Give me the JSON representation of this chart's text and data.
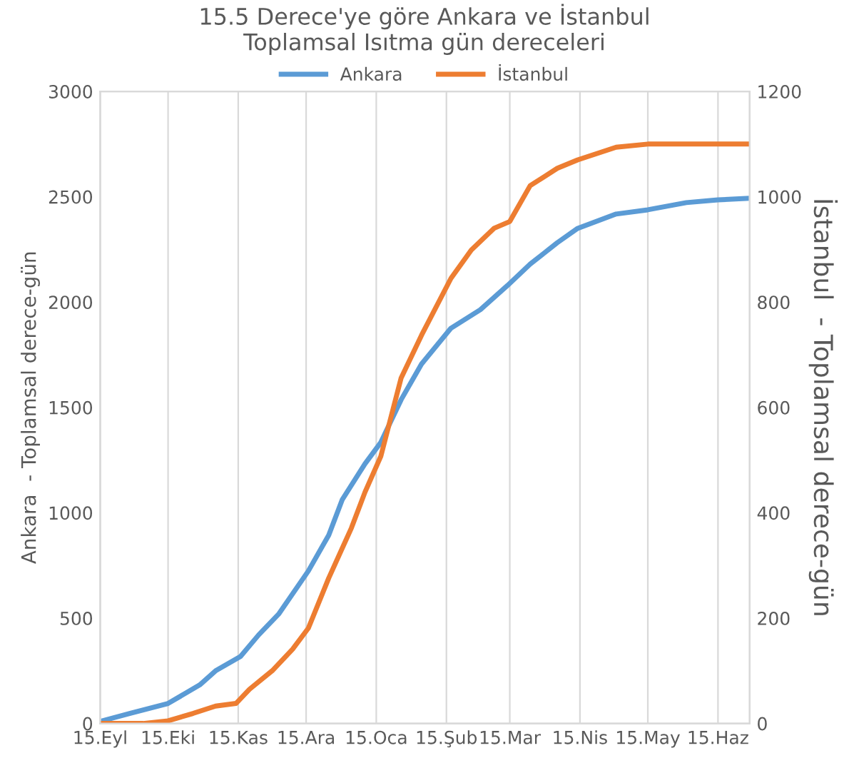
{
  "chart_data": {
    "type": "line",
    "title": "15.5 Derece'ye göre Ankara ve İstanbul\nToplamsal Isıtma gün dereceleri",
    "ylabel": "Ankara  - Toplamsal derece-gün",
    "y2label": "İstanbul  - Toplamsal derece-gün",
    "legend": "top",
    "grid": "x",
    "xlim": [
      "2000-09-15",
      "2001-06-29"
    ],
    "xticks": [
      {
        "value": "2000-09-15",
        "label": "15.Eyl"
      },
      {
        "value": "2000-10-15",
        "label": "15.Eki"
      },
      {
        "value": "2000-11-15",
        "label": "15.Kas"
      },
      {
        "value": "2000-12-15",
        "label": "15.Ara"
      },
      {
        "value": "2001-01-15",
        "label": "15.Oca"
      },
      {
        "value": "2001-02-15",
        "label": "15.Şub"
      },
      {
        "value": "2001-03-15",
        "label": "15.Mar"
      },
      {
        "value": "2001-04-15",
        "label": "15.Nis"
      },
      {
        "value": "2001-05-15",
        "label": "15.May"
      },
      {
        "value": "2001-06-15",
        "label": "15.Haz"
      }
    ],
    "ylim": [
      0,
      3000
    ],
    "yticks": [
      0,
      500,
      1000,
      1500,
      2000,
      2500,
      3000
    ],
    "y2lim": [
      0,
      1200
    ],
    "y2ticks": [
      0,
      200,
      400,
      600,
      800,
      1000,
      1200
    ],
    "series": [
      {
        "name": "Ankara",
        "color": "#5b9bd5",
        "x": [
          "2000-09-15",
          "2000-09-28",
          "2000-10-15",
          "2000-10-29",
          "2000-11-05",
          "2000-11-16",
          "2000-11-24",
          "2000-12-03",
          "2000-12-16",
          "2000-12-25",
          "2000-12-31",
          "2001-01-10",
          "2001-01-17",
          "2001-01-26",
          "2001-02-04",
          "2001-02-17",
          "2001-03-02",
          "2001-03-14",
          "2001-03-24",
          "2001-04-05",
          "2001-04-14",
          "2001-05-01",
          "2001-05-15",
          "2001-06-01",
          "2001-06-15",
          "2001-06-28"
        ],
        "values": [
          10,
          47,
          95,
          183,
          250,
          318,
          420,
          521,
          724,
          894,
          1063,
          1232,
          1334,
          1537,
          1706,
          1876,
          1964,
          2079,
          2180,
          2282,
          2350,
          2418,
          2438,
          2472,
          2485,
          2492
        ]
      },
      {
        "name": "İstanbul",
        "color": "#ed7d31",
        "axis": "y2",
        "x": [
          "2000-09-15",
          "2000-10-04",
          "2000-10-15",
          "2000-10-26",
          "2000-11-05",
          "2000-11-14",
          "2000-11-20",
          "2000-11-30",
          "2000-12-09",
          "2000-12-16",
          "2000-12-25",
          "2001-01-04",
          "2001-01-10",
          "2001-01-17",
          "2001-01-26",
          "2001-02-04",
          "2001-02-17",
          "2001-02-26",
          "2001-03-08",
          "2001-03-15",
          "2001-03-24",
          "2001-04-05",
          "2001-04-14",
          "2001-05-01",
          "2001-05-15",
          "2001-06-28"
        ],
        "values": [
          0,
          0,
          5,
          19,
          33,
          38,
          65,
          100,
          141,
          181,
          276,
          371,
          439,
          507,
          656,
          737,
          845,
          899,
          940,
          953,
          1021,
          1054,
          1070,
          1094,
          1100,
          1100
        ]
      }
    ]
  }
}
